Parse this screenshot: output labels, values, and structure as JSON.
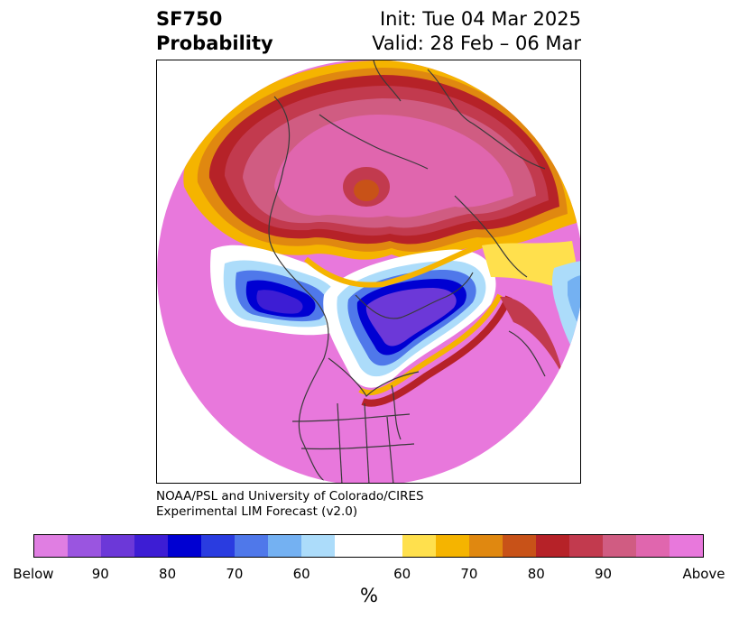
{
  "title": {
    "variable": "SF750",
    "product": "Probability",
    "init": "Init: Tue 04 Mar 2025",
    "valid": "Valid: 28 Feb – 06 Mar"
  },
  "credit": {
    "line1": "NOAA/PSL and University of Colorado/CIRES",
    "line2": "Experimental LIM Forecast (v2.0)"
  },
  "colorbar": {
    "unit_label": "%",
    "tick_labels": [
      "Below",
      "90",
      "80",
      "70",
      "60",
      "60",
      "70",
      "80",
      "90",
      "Above"
    ],
    "colors": [
      "#e07ee2",
      "#9a55e0",
      "#6c38d8",
      "#3d1dd4",
      "#0000d2",
      "#2a3ce0",
      "#4f78ea",
      "#74b1f2",
      "#acdcfa",
      "#ffffff",
      "#ffe04d",
      "#f5b400",
      "#e08810",
      "#c85218",
      "#b62228",
      "#c23a4e",
      "#d05c82",
      "#e066ae",
      "#e878dc"
    ]
  },
  "map_colors": {
    "below_max": "#e07ee2",
    "below_mid": "#6c38d8",
    "below_core": "#0000d2",
    "above_max": "#e878dc",
    "above_high": "#d05c82",
    "above_mid": "#b62228",
    "above_low": "#f5b400",
    "coast": "#3a3a3a"
  }
}
